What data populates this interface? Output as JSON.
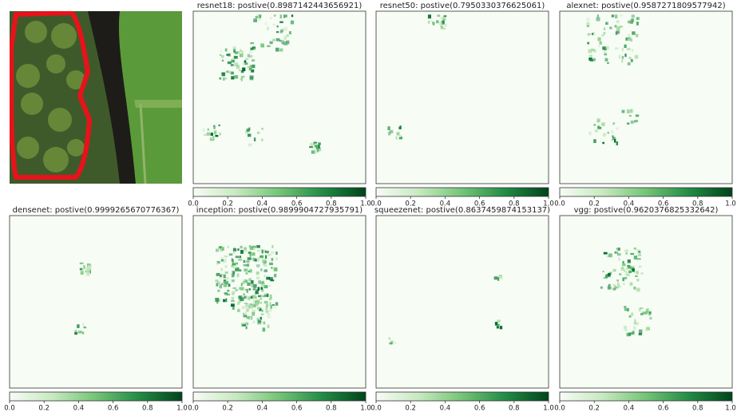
{
  "panels": [
    {
      "title": "resnet18: postive(0.8987142443656921)"
    },
    {
      "title": "resnet50: postive(0.7950330376625061)"
    },
    {
      "title": "alexnet: postive(0.9587271809577942)"
    },
    {
      "title": "densenet: postive(0.9999265670776367)"
    },
    {
      "title": "inception: postive(0.9899904727935791)"
    },
    {
      "title": "squeezenet: postive(0.8637459874153137)"
    },
    {
      "title": "vgg: postive(0.9620376825332642)"
    }
  ],
  "colorbar": {
    "lim": [
      0,
      1
    ],
    "ticks": [
      {
        "value": 0,
        "label": "0.0"
      },
      {
        "value": 0.2,
        "label": "0.2"
      },
      {
        "value": 0.4,
        "label": "0.4"
      },
      {
        "value": 0.6,
        "label": "0.6"
      },
      {
        "value": 0.8,
        "label": "0.8"
      },
      {
        "value": 1,
        "label": "1.0"
      }
    ]
  }
}
